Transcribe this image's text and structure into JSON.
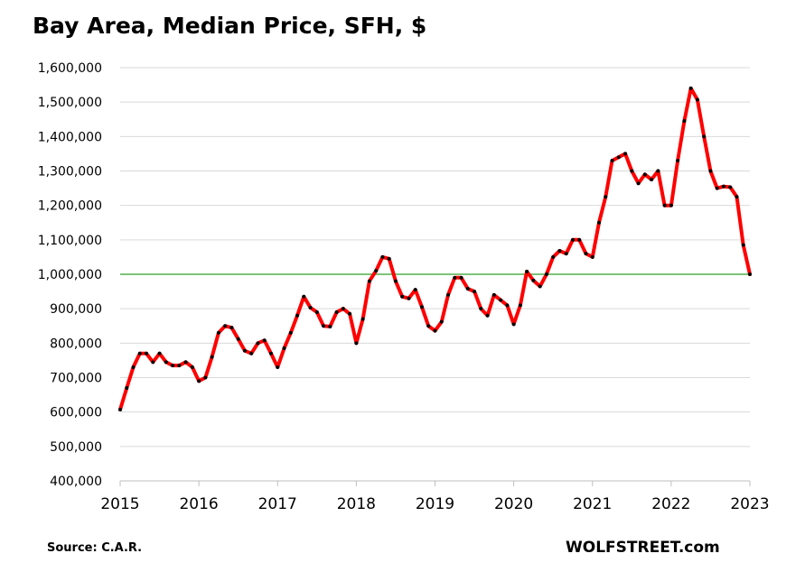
{
  "chart_data": {
    "type": "line",
    "title": "Bay Area, Median Price, SFH, $",
    "xlabel": "",
    "ylabel": "",
    "ylim": [
      400000,
      1600000
    ],
    "xlim": [
      2015,
      2023
    ],
    "y_ticks": [
      400000,
      500000,
      600000,
      700000,
      800000,
      900000,
      1000000,
      1100000,
      1200000,
      1300000,
      1400000,
      1500000,
      1600000
    ],
    "y_tick_labels": [
      "400,000",
      "500,000",
      "600,000",
      "700,000",
      "800,000",
      "900,000",
      "1,000,000",
      "1,100,000",
      "1,200,000",
      "1,300,000",
      "1,400,000",
      "1,500,000",
      "1,600,000"
    ],
    "x_tick_labels": [
      "2015",
      "2016",
      "2017",
      "2018",
      "2019",
      "2020",
      "2021",
      "2022",
      "2023"
    ],
    "grid": "horizontal",
    "reference_line": {
      "y": 1000000,
      "color": "#2ca02c"
    },
    "series": [
      {
        "color": "#ff0000",
        "marker_color": "#000000",
        "x": [
          "2015-01",
          "2015-02",
          "2015-03",
          "2015-04",
          "2015-05",
          "2015-06",
          "2015-07",
          "2015-08",
          "2015-09",
          "2015-10",
          "2015-11",
          "2015-12",
          "2016-01",
          "2016-02",
          "2016-03",
          "2016-04",
          "2016-05",
          "2016-06",
          "2016-07",
          "2016-08",
          "2016-09",
          "2016-10",
          "2016-11",
          "2016-12",
          "2017-01",
          "2017-02",
          "2017-03",
          "2017-04",
          "2017-05",
          "2017-06",
          "2017-07",
          "2017-08",
          "2017-09",
          "2017-10",
          "2017-11",
          "2017-12",
          "2018-01",
          "2018-02",
          "2018-03",
          "2018-04",
          "2018-05",
          "2018-06",
          "2018-07",
          "2018-08",
          "2018-09",
          "2018-10",
          "2018-11",
          "2018-12",
          "2019-01",
          "2019-02",
          "2019-03",
          "2019-04",
          "2019-05",
          "2019-06",
          "2019-07",
          "2019-08",
          "2019-09",
          "2019-10",
          "2019-11",
          "2019-12",
          "2020-01",
          "2020-02",
          "2020-03",
          "2020-04",
          "2020-05",
          "2020-06",
          "2020-07",
          "2020-08",
          "2020-09",
          "2020-10",
          "2020-11",
          "2020-12",
          "2021-01",
          "2021-02",
          "2021-03",
          "2021-04",
          "2021-05",
          "2021-06",
          "2021-07",
          "2021-08",
          "2021-09",
          "2021-10",
          "2021-11",
          "2021-12",
          "2022-01",
          "2022-02",
          "2022-03",
          "2022-04",
          "2022-05",
          "2022-06",
          "2022-07",
          "2022-08",
          "2022-09",
          "2022-10",
          "2022-11",
          "2022-12",
          "2023-01"
        ],
        "values": [
          607000,
          670000,
          730000,
          770000,
          770000,
          745000,
          770000,
          745000,
          735000,
          735000,
          745000,
          730000,
          690000,
          700000,
          760000,
          830000,
          850000,
          845000,
          812000,
          778000,
          770000,
          800000,
          808000,
          770000,
          730000,
          785000,
          830000,
          880000,
          935000,
          903000,
          890000,
          850000,
          848000,
          890000,
          900000,
          885000,
          800000,
          870000,
          980000,
          1010000,
          1050000,
          1045000,
          980000,
          935000,
          930000,
          955000,
          905000,
          850000,
          836000,
          862000,
          940000,
          990000,
          990000,
          958000,
          950000,
          900000,
          880000,
          940000,
          925000,
          910000,
          855000,
          910000,
          1008000,
          982000,
          965000,
          1000000,
          1050000,
          1068000,
          1060000,
          1100000,
          1100000,
          1060000,
          1050000,
          1150000,
          1225000,
          1330000,
          1340000,
          1350000,
          1300000,
          1264000,
          1290000,
          1275000,
          1300000,
          1200000,
          1200000,
          1330000,
          1445000,
          1540000,
          1507000,
          1400000,
          1300000,
          1250000,
          1255000,
          1253000,
          1225000,
          1085000,
          1000000
        ]
      }
    ]
  },
  "footer": {
    "source": "Source: C.A.R.",
    "brand": "WOLFSTREET.com"
  }
}
